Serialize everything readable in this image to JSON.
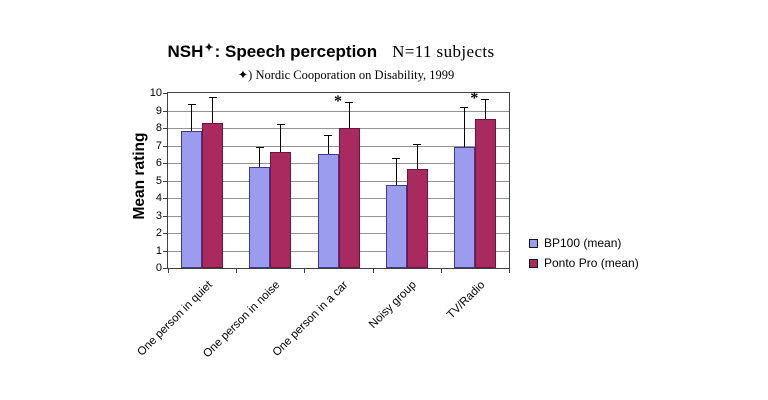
{
  "title": {
    "product": "NSH",
    "star": "✦",
    "main": ": Speech perception",
    "subjects": "N=11 subjects"
  },
  "footnote": "✦) Nordic Cooporation on Disability, 1999",
  "chart_data": {
    "type": "bar",
    "title": "NSH✦: Speech perception — N=11 subjects",
    "subtitle": "✦) Nordic Cooporation on Disability, 1999",
    "xlabel": "",
    "ylabel": "Mean rating",
    "ylim": [
      0,
      10
    ],
    "ytick_step": 1,
    "ytick_labels": [
      "0",
      "1",
      "2",
      "3",
      "4",
      "5",
      "6",
      "7",
      "8",
      "9",
      "10"
    ],
    "grid": true,
    "legend_position": "right",
    "categories": [
      "One person in quiet",
      "One person in noise",
      "One person in a car",
      "Noisy group",
      "TV/Radio"
    ],
    "series": [
      {
        "name": "BP100 (mean)",
        "color": "#9c9cee",
        "border_color": "#3c3c8c",
        "values": [
          7.85,
          5.75,
          6.5,
          4.75,
          6.9
        ],
        "error_bar_top": [
          9.35,
          6.9,
          7.6,
          6.3,
          9.2
        ]
      },
      {
        "name": "Ponto Pro (mean)",
        "color": "#a92a5e",
        "border_color": "#701540",
        "values": [
          8.3,
          6.65,
          8.0,
          5.65,
          8.5
        ],
        "error_bar_top": [
          9.75,
          8.25,
          9.5,
          7.1,
          9.65
        ]
      }
    ],
    "significance_markers": [
      {
        "category": "One person in a car",
        "series": "Ponto Pro (mean)",
        "symbol": "*"
      },
      {
        "category": "TV/Radio",
        "series": "Ponto Pro (mean)",
        "symbol": "*"
      }
    ],
    "colors": {
      "gridline": "#949494",
      "axis": "#404040",
      "error_bar": "#000000",
      "background": "#ffffff"
    }
  }
}
